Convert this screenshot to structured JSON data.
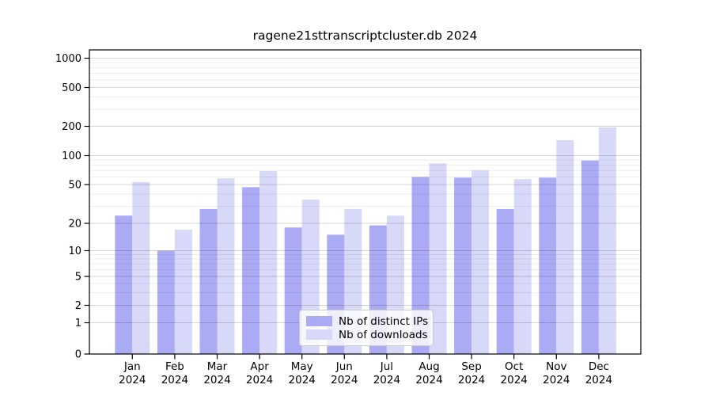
{
  "title": "ragene21sttranscriptcluster.db 2024",
  "chart_data": {
    "type": "bar",
    "title": "ragene21sttranscriptcluster.db 2024",
    "xlabel": "",
    "ylabel": "",
    "categories": [
      "Jan",
      "Feb",
      "Mar",
      "Apr",
      "May",
      "Jun",
      "Jul",
      "Aug",
      "Sep",
      "Oct",
      "Nov",
      "Dec"
    ],
    "year_label": "2024",
    "series": [
      {
        "name": "Nb of distinct IPs",
        "color": "#aaaaf5",
        "values": [
          24,
          10,
          28,
          47,
          18,
          15,
          19,
          60,
          59,
          28,
          59,
          89
        ]
      },
      {
        "name": "Nb of downloads",
        "color": "#d8d8f8",
        "values": [
          53,
          17,
          58,
          69,
          35,
          28,
          24,
          83,
          70,
          57,
          144,
          195
        ]
      }
    ],
    "y_axis": {
      "scale": "symlog",
      "ticks": [
        0,
        1,
        2,
        5,
        10,
        20,
        50,
        100,
        200,
        500,
        1000
      ],
      "minor_ticks": [
        3,
        4,
        6,
        7,
        8,
        9,
        30,
        40,
        60,
        70,
        80,
        90,
        300,
        400,
        600,
        700,
        800,
        900
      ],
      "ylim": [
        0,
        1200
      ]
    },
    "grid": true,
    "legend_position": "lower center"
  }
}
